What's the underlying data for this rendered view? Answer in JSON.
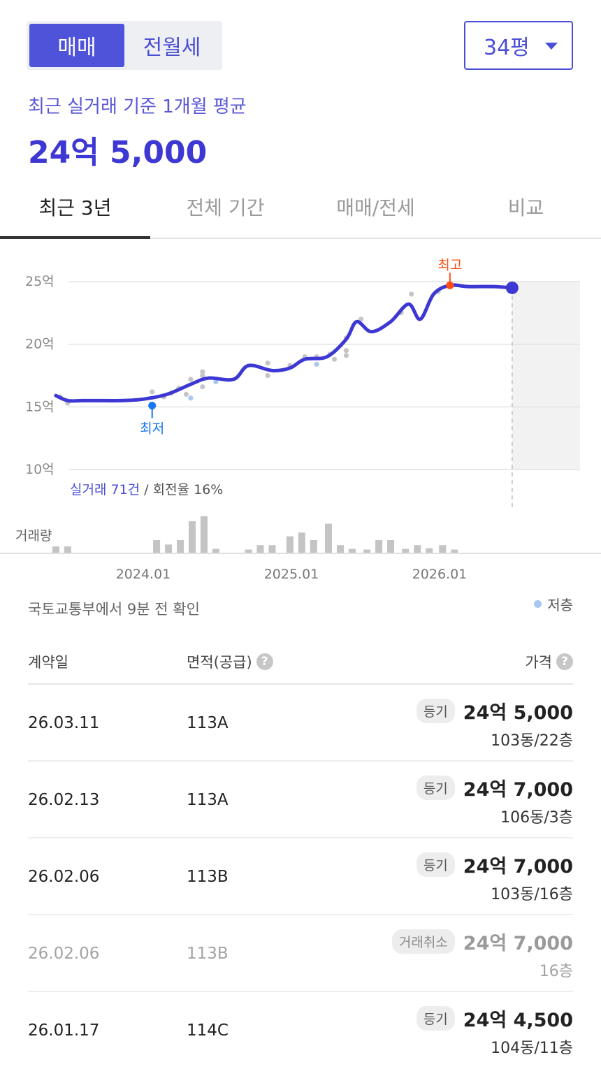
{
  "trade_toggle": {
    "options": [
      "매매",
      "전월세"
    ],
    "selected": 0
  },
  "size_select": {
    "value": "34평"
  },
  "summary": {
    "label": "최근 실거래 기준 1개월 평균",
    "value": "24억 5,000"
  },
  "tabs": [
    "최근 3년",
    "전체 기간",
    "매매/전세",
    "비교"
  ],
  "active_tab": 0,
  "chart_data": {
    "type": "line",
    "y_unit": "억",
    "ylim": [
      10,
      25
    ],
    "y_ticks": [
      "25억",
      "20억",
      "15억",
      "10억"
    ],
    "y_tick_values": [
      25,
      20,
      15,
      10
    ],
    "x_ticks": [
      "2024.01",
      "2025.01",
      "2026.01"
    ],
    "series": [
      {
        "points": [
          [
            2023.42,
            15.9
          ],
          [
            2023.5,
            15.5
          ],
          [
            2023.6,
            15.5
          ],
          [
            2023.7,
            15.5
          ],
          [
            2023.85,
            15.5
          ],
          [
            2024.0,
            15.6
          ],
          [
            2024.17,
            16.0
          ],
          [
            2024.33,
            16.8
          ],
          [
            2024.45,
            17.3
          ],
          [
            2024.62,
            17.2
          ],
          [
            2024.72,
            18.3
          ],
          [
            2024.88,
            17.9
          ],
          [
            2025.0,
            18.1
          ],
          [
            2025.1,
            18.8
          ],
          [
            2025.25,
            19.0
          ],
          [
            2025.38,
            20.4
          ],
          [
            2025.45,
            21.8
          ],
          [
            2025.55,
            21.0
          ],
          [
            2025.68,
            21.8
          ],
          [
            2025.8,
            23.2
          ],
          [
            2025.88,
            22.0
          ],
          [
            2025.97,
            24.0
          ],
          [
            2026.08,
            24.7
          ],
          [
            2026.2,
            24.6
          ],
          [
            2026.37,
            24.6
          ],
          [
            2026.5,
            24.5
          ]
        ]
      }
    ],
    "scatter": [
      [
        2023.45,
        15.8
      ],
      [
        2023.5,
        15.3
      ],
      [
        2024.07,
        16.2
      ],
      [
        2024.15,
        15.8
      ],
      [
        2024.2,
        16.1
      ],
      [
        2024.25,
        16.5
      ],
      [
        2024.3,
        16.0
      ],
      [
        2024.33,
        17.2
      ],
      [
        2024.41,
        17.8
      ],
      [
        2024.41,
        17.5
      ],
      [
        2024.41,
        16.6
      ],
      [
        2024.85,
        18.5
      ],
      [
        2024.85,
        17.5
      ],
      [
        2025.0,
        18.3
      ],
      [
        2025.1,
        19.0
      ],
      [
        2025.18,
        19.0
      ],
      [
        2025.27,
        19.2
      ],
      [
        2025.3,
        18.8
      ],
      [
        2025.38,
        20.5
      ],
      [
        2025.38,
        19.5
      ],
      [
        2025.38,
        19.1
      ],
      [
        2025.48,
        22.0
      ],
      [
        2025.75,
        22.5
      ],
      [
        2025.82,
        24.0
      ],
      [
        2026.0,
        24.2
      ]
    ],
    "scatter_low": [
      [
        2024.33,
        15.7
      ],
      [
        2024.5,
        17.0
      ],
      [
        2025.18,
        18.4
      ]
    ],
    "min_point": {
      "label": "최저",
      "x": 2024.07,
      "y": 15.1
    },
    "max_point": {
      "label": "최고",
      "x": 2026.08,
      "y": 24.7
    },
    "last_point": {
      "x": 2026.5,
      "y": 24.5
    },
    "volume": {
      "label": "거래량",
      "bars": [
        [
          2023.42,
          1
        ],
        [
          2023.5,
          1
        ],
        [
          2024.1,
          2
        ],
        [
          2024.18,
          1.3
        ],
        [
          2024.26,
          2
        ],
        [
          2024.34,
          5
        ],
        [
          2024.42,
          5.8
        ],
        [
          2024.5,
          0.6
        ],
        [
          2024.72,
          0.5
        ],
        [
          2024.8,
          1.2
        ],
        [
          2024.88,
          1.2
        ],
        [
          2025.0,
          2.6
        ],
        [
          2025.08,
          3.2
        ],
        [
          2025.16,
          2
        ],
        [
          2025.26,
          4.6
        ],
        [
          2025.34,
          1.2
        ],
        [
          2025.42,
          0.6
        ],
        [
          2025.52,
          0.5
        ],
        [
          2025.6,
          2
        ],
        [
          2025.68,
          2
        ],
        [
          2025.78,
          0.6
        ],
        [
          2025.86,
          1.2
        ],
        [
          2025.94,
          0.7
        ],
        [
          2026.03,
          1.2
        ],
        [
          2026.11,
          0.5
        ]
      ]
    },
    "accent_color": "#3d37d3",
    "min_color": "#1877f2",
    "max_color": "#ff4d14"
  },
  "deal_note": {
    "highlight": "실거래 71건",
    "rest": " / 회전율 16%"
  },
  "source_text": "국토교통부에서 9분 전 확인",
  "legend_low": "저층",
  "table": {
    "headers": {
      "date": "계약일",
      "area": "면적(공급)",
      "price": "가격"
    },
    "rows": [
      {
        "date": "26.03.11",
        "area": "113A",
        "badge": "등기",
        "price": "24억 5,000",
        "floor": "103동/22층",
        "cancelled": false
      },
      {
        "date": "26.02.13",
        "area": "113A",
        "badge": "등기",
        "price": "24억 7,000",
        "floor": "106동/3층",
        "cancelled": false
      },
      {
        "date": "26.02.06",
        "area": "113B",
        "badge": "등기",
        "price": "24억 7,000",
        "floor": "103동/16층",
        "cancelled": false
      },
      {
        "date": "26.02.06",
        "area": "113B",
        "badge": "거래취소",
        "price": "24억 7,000",
        "floor": "16층",
        "cancelled": true
      },
      {
        "date": "26.01.17",
        "area": "114C",
        "badge": "등기",
        "price": "24억 4,500",
        "floor": "104동/11층",
        "cancelled": false
      }
    ]
  }
}
